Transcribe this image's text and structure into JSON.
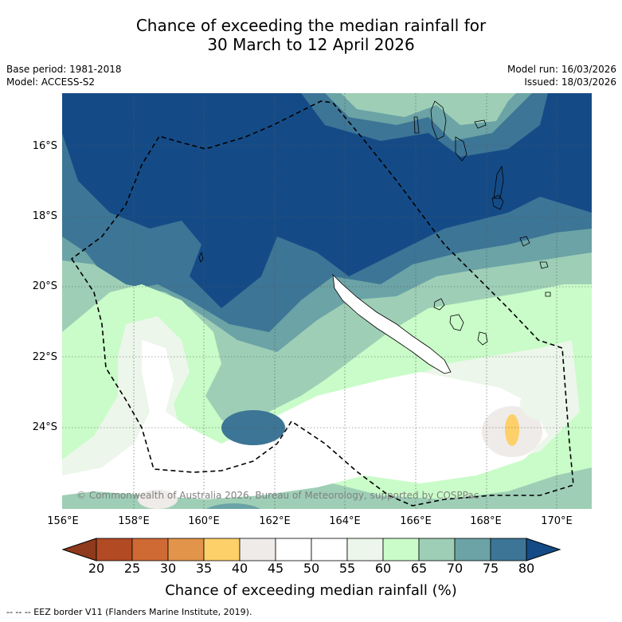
{
  "title": {
    "line1": "Chance of exceeding the median rainfall for",
    "line2": "30 March to 12 April 2026"
  },
  "meta": {
    "base_period": "Base period: 1981-2018",
    "model": "Model: ACCESS-S2",
    "model_run": "Model run: 16/03/2026",
    "issued": "Issued: 18/03/2026"
  },
  "axes": {
    "lat_labels": [
      "16°S",
      "18°S",
      "20°S",
      "22°S",
      "24°S"
    ],
    "lon_labels": [
      "156°E",
      "158°E",
      "160°E",
      "162°E",
      "164°E",
      "166°E",
      "168°E",
      "170°E"
    ]
  },
  "colorbar": {
    "labels": [
      "20",
      "25",
      "30",
      "35",
      "40",
      "45",
      "50",
      "55",
      "60",
      "65",
      "70",
      "75",
      "80"
    ],
    "colors": [
      "#8e3a1c",
      "#b24a24",
      "#cf6a35",
      "#e2944a",
      "#fdd06a",
      "#efebe8",
      "#ffffff",
      "#ffffff",
      "#ecf6ea",
      "#c9fcc8",
      "#9ecfb6",
      "#6ba3a6",
      "#3d7596",
      "#144b87"
    ],
    "title": "Chance of exceeding median rainfall (%)"
  },
  "map": {
    "copyright": "© Commonwealth of Australia 2026, Bureau of Meteorology, supported by COSPPac"
  },
  "footnote": "-- -- -- EEZ border V11 (Flanders Marine Institute, 2019)."
}
